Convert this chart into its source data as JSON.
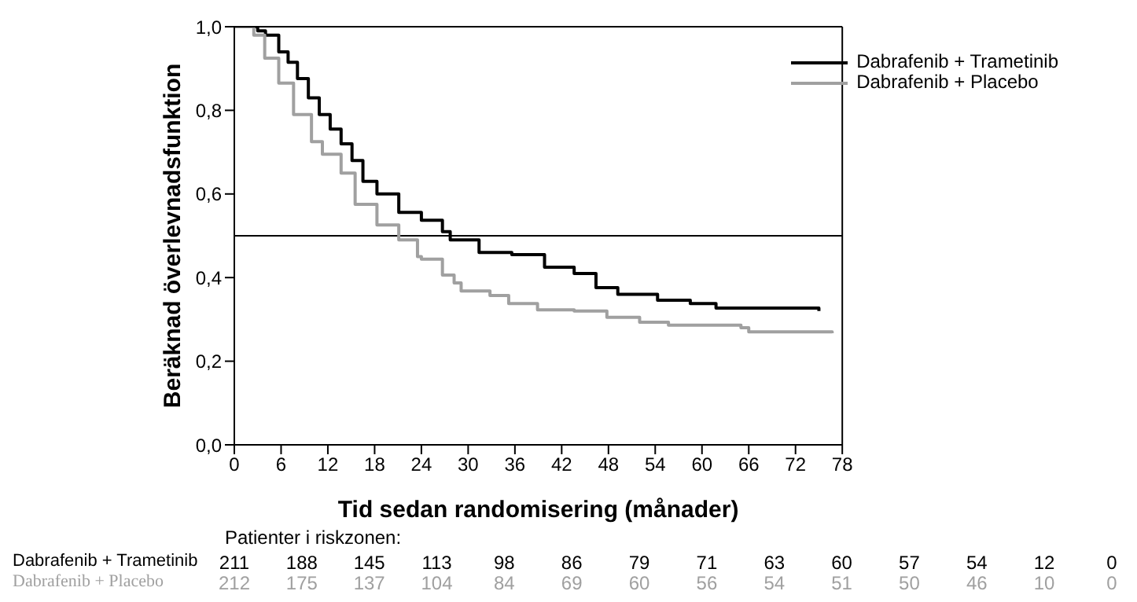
{
  "chart_data": {
    "type": "step",
    "xlabel": "Tid sedan randomisering (månader)",
    "ylabel": "Beräknad överlevnadsfunktion",
    "xlim": [
      0,
      78
    ],
    "xticks": [
      0,
      6,
      12,
      18,
      24,
      30,
      36,
      42,
      48,
      54,
      60,
      66,
      72,
      78
    ],
    "ylim": [
      0,
      1.0
    ],
    "yticks": [
      {
        "value": 0,
        "label": "0,0"
      },
      {
        "value": 0.2,
        "label": "0,2"
      },
      {
        "value": 0.4,
        "label": "0,4"
      },
      {
        "value": 0.6,
        "label": "0,6"
      },
      {
        "value": 0.8,
        "label": "0,8"
      },
      {
        "value": 1.0,
        "label": "1,0"
      }
    ],
    "legend": "top right",
    "ref_lines": [
      {
        "axis": "y",
        "value": 0.5,
        "color": "#000000"
      }
    ],
    "annotations": [
      "Patienter i riskzonen:",
      "211 188 145 113 98 86 79 71 63 60 57 54 12 0",
      "212 175 137 104 84 69 60 56 54 51 50 46 10 0"
    ],
    "series": [
      {
        "name": "Dabrafenib + Trametinib",
        "color": "#000000",
        "x": [
          0,
          3,
          4,
          5.7,
          6.9,
          8.1,
          9.5,
          10.9,
          12.3,
          13.7,
          15.1,
          16.5,
          18.3,
          21.1,
          24,
          26.7,
          27.7,
          31.4,
          35.6,
          39.8,
          43.6,
          45.4,
          46.4,
          49.2,
          54.3,
          58.5,
          61.8,
          75
        ],
        "values": [
          1.0,
          0.99,
          0.98,
          0.94,
          0.915,
          0.876,
          0.83,
          0.79,
          0.755,
          0.72,
          0.68,
          0.63,
          0.6,
          0.556,
          0.537,
          0.51,
          0.49,
          0.46,
          0.455,
          0.425,
          0.41,
          0.41,
          0.376,
          0.36,
          0.346,
          0.338,
          0.327,
          0.32
        ]
      },
      {
        "name": "Dabrafenib + Placebo",
        "color": "#a0a0a0",
        "x": [
          0,
          2.5,
          3.9,
          5.7,
          7.6,
          9.9,
          11.3,
          13.7,
          15.5,
          18.3,
          21.1,
          23.5,
          24,
          26.7,
          28.2,
          29.1,
          32.8,
          35.2,
          38.9,
          43.6,
          47.8,
          52,
          55.7,
          65,
          66,
          76.7
        ],
        "values": [
          1.0,
          0.98,
          0.925,
          0.865,
          0.79,
          0.725,
          0.695,
          0.65,
          0.575,
          0.526,
          0.49,
          0.45,
          0.444,
          0.406,
          0.387,
          0.368,
          0.357,
          0.338,
          0.323,
          0.32,
          0.305,
          0.293,
          0.286,
          0.28,
          0.27,
          0.267
        ]
      }
    ]
  }
}
